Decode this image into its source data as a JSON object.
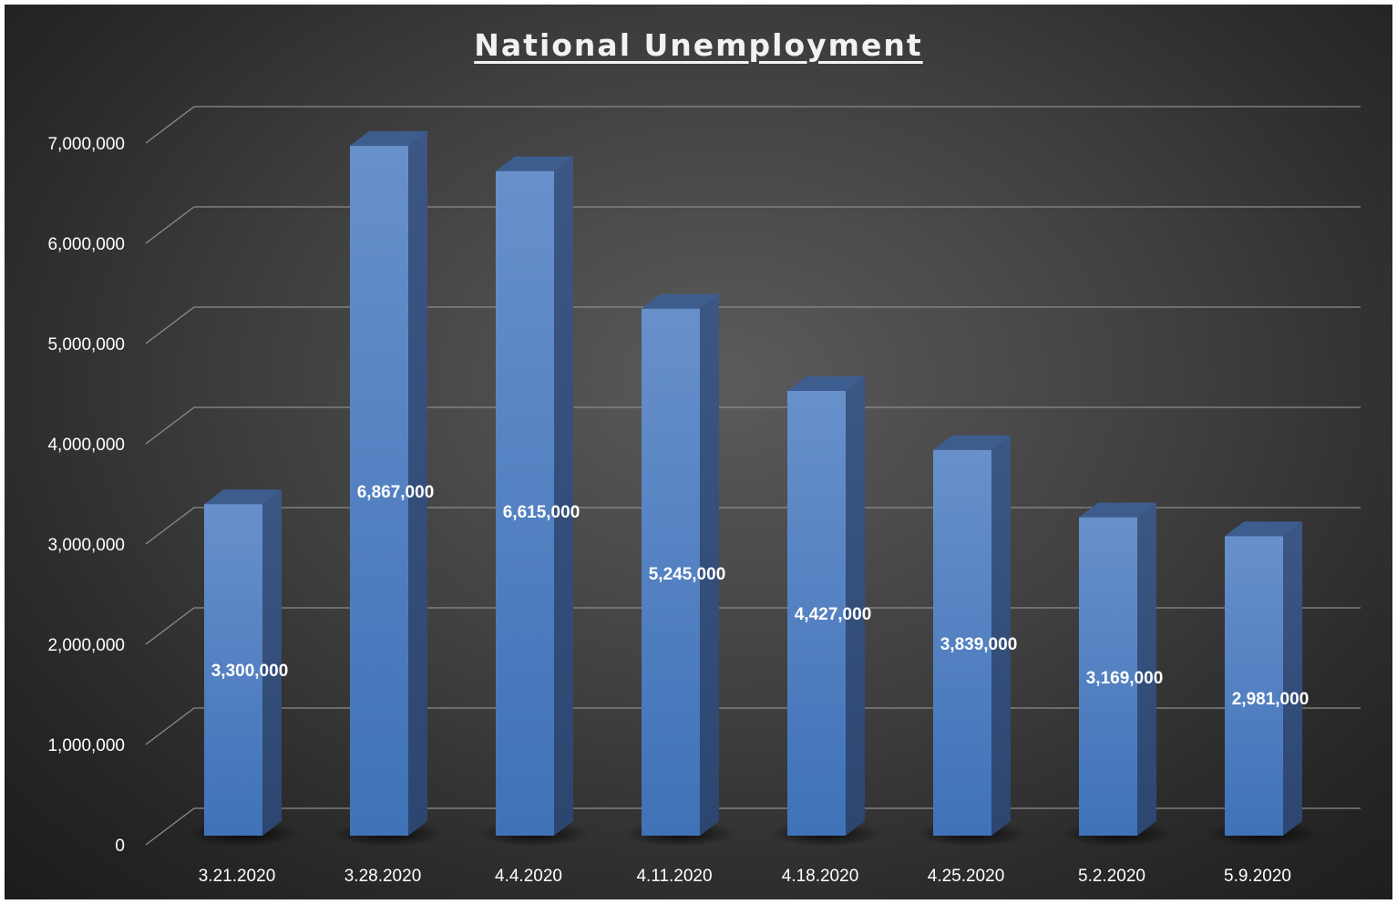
{
  "chart_data": {
    "type": "bar",
    "style": "3d-column",
    "title": "National Unemployment",
    "xlabel": "",
    "ylabel": "",
    "categories": [
      "3.21.2020",
      "3.28.2020",
      "4.4.2020",
      "4.11.2020",
      "4.18.2020",
      "4.25.2020",
      "5.2.2020",
      "5.9.2020"
    ],
    "values": [
      3300000,
      6867000,
      6615000,
      5245000,
      4427000,
      3839000,
      3169000,
      2981000
    ],
    "data_labels": [
      "3,300,000",
      "6,867,000",
      "6,615,000",
      "5,245,000",
      "4,427,000",
      "3,839,000",
      "3,169,000",
      "2,981,000"
    ],
    "y_ticks": [
      0,
      1000000,
      2000000,
      3000000,
      4000000,
      5000000,
      6000000,
      7000000
    ],
    "y_tick_labels": [
      "0",
      "1,000,000",
      "2,000,000",
      "3,000,000",
      "4,000,000",
      "5,000,000",
      "6,000,000",
      "7,000,000"
    ],
    "ylim": [
      0,
      7000000
    ],
    "grid": true,
    "legend": "none",
    "colors": {
      "bar_front": "#4f81c7",
      "bar_top": "#3e5d8f",
      "bar_side": "#34507c",
      "gridline": "#8c8c8c",
      "text": "#ffffff"
    }
  }
}
